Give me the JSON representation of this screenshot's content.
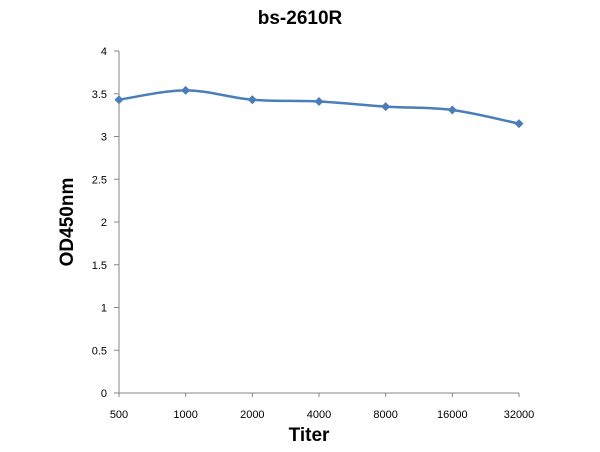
{
  "chart_data": {
    "type": "line",
    "title": "bs-2610R",
    "xlabel": "Titer",
    "ylabel": "OD450nm",
    "categories": [
      "500",
      "1000",
      "2000",
      "4000",
      "8000",
      "16000",
      "32000"
    ],
    "series": [
      {
        "values": [
          3.43,
          3.54,
          3.43,
          3.41,
          3.35,
          3.31,
          3.15
        ]
      }
    ],
    "ylim": [
      0,
      4
    ],
    "yticks": [
      "0",
      "0.5",
      "1",
      "1.5",
      "2",
      "2.5",
      "3",
      "3.5",
      "4"
    ],
    "grid": false,
    "legend": "none",
    "series_color": "#4a7ebb",
    "marker": "diamond",
    "smooth": true
  }
}
